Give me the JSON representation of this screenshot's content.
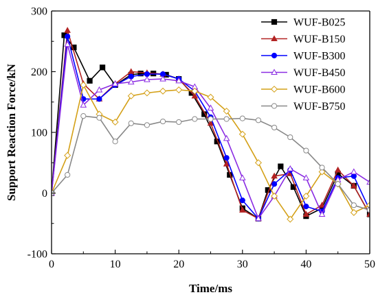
{
  "chart_data": {
    "type": "line",
    "xlabel": "Time/ms",
    "ylabel": "Support Reaction Force/kN",
    "xlim": [
      0,
      50
    ],
    "ylim": [
      -100,
      300
    ],
    "x_ticks": [
      0,
      10,
      20,
      30,
      40,
      50
    ],
    "y_ticks": [
      -100,
      0,
      100,
      200,
      300
    ],
    "grid": false,
    "legend_position": "top-right",
    "series": [
      {
        "name": "WUF-B025",
        "color": "#000000",
        "marker": "square",
        "filled": true,
        "x": [
          0,
          2,
          3.5,
          6,
          8,
          10,
          12.5,
          14,
          16,
          18,
          20,
          22,
          24,
          26,
          28,
          30,
          32.5,
          34,
          36,
          38,
          40,
          42.5,
          45,
          47.5,
          50
        ],
        "y": [
          0,
          260,
          240,
          185,
          207,
          178,
          195,
          197,
          197,
          195,
          188,
          165,
          130,
          85,
          30,
          -25,
          -42,
          5,
          44,
          10,
          -38,
          -25,
          32,
          12,
          -35
        ]
      },
      {
        "name": "WUF-B150",
        "color": "#b22222",
        "marker": "triangle",
        "filled": true,
        "x": [
          0,
          2.5,
          5,
          7.5,
          10,
          12.5,
          15,
          17.5,
          20,
          22.5,
          25,
          27.5,
          30,
          32.5,
          35,
          37.5,
          40,
          42.5,
          45,
          47.5,
          50
        ],
        "y": [
          0,
          268,
          180,
          155,
          180,
          200,
          198,
          196,
          188,
          160,
          115,
          48,
          -28,
          -42,
          28,
          32,
          -35,
          -20,
          38,
          12,
          -35
        ]
      },
      {
        "name": "WUF-B300",
        "color": "#0000ff",
        "marker": "circle",
        "filled": true,
        "x": [
          0,
          2.5,
          5,
          7.5,
          10,
          12.5,
          15,
          17.5,
          20,
          22.5,
          25,
          27.5,
          30,
          32.5,
          35,
          37.5,
          40,
          42.5,
          45,
          47.5,
          50
        ],
        "y": [
          0,
          258,
          155,
          155,
          178,
          192,
          196,
          196,
          188,
          168,
          125,
          58,
          -12,
          -42,
          15,
          38,
          -22,
          -30,
          25,
          28,
          -28
        ]
      },
      {
        "name": "WUF-B450",
        "color": "#8a2be2",
        "marker": "triangle",
        "filled": false,
        "x": [
          0,
          2.5,
          5,
          7.5,
          10,
          12.5,
          15,
          17.5,
          20,
          22.5,
          25,
          27.5,
          30,
          32.5,
          35,
          37.5,
          40,
          42.5,
          45,
          47.5,
          50
        ],
        "y": [
          0,
          245,
          145,
          170,
          180,
          183,
          187,
          188,
          185,
          175,
          140,
          90,
          25,
          -42,
          -5,
          40,
          25,
          -35,
          22,
          35,
          18
        ]
      },
      {
        "name": "WUF-B600",
        "color": "#d4a017",
        "marker": "diamond",
        "filled": false,
        "x": [
          0,
          2.5,
          5,
          7.5,
          10,
          12.5,
          15,
          17.5,
          20,
          22.5,
          25,
          27.5,
          30,
          32.5,
          35,
          37.5,
          40,
          42.5,
          45,
          47.5,
          50
        ],
        "y": [
          0,
          62,
          178,
          130,
          117,
          160,
          165,
          168,
          170,
          168,
          158,
          135,
          97,
          50,
          -5,
          -43,
          -5,
          35,
          15,
          -32,
          -20
        ]
      },
      {
        "name": "WUF-B750",
        "color": "#888888",
        "marker": "circle",
        "filled": false,
        "x": [
          0,
          2.5,
          5,
          7.5,
          10,
          12.5,
          15,
          17.5,
          20,
          22.5,
          25,
          27.5,
          30,
          32.5,
          35,
          37.5,
          40,
          42.5,
          45,
          47.5,
          50
        ],
        "y": [
          0,
          30,
          127,
          124,
          85,
          115,
          112,
          118,
          117,
          122,
          122,
          122,
          123,
          120,
          108,
          92,
          70,
          42,
          15,
          -20,
          -28
        ]
      }
    ]
  }
}
